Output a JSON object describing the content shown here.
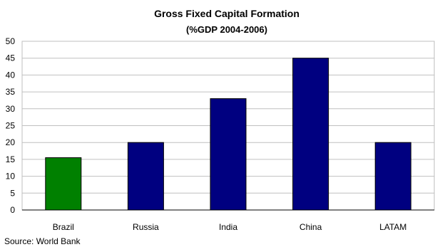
{
  "chart_data": {
    "type": "bar",
    "title": "Gross Fixed Capital Formation",
    "subtitle": "(%GDP 2004-2006)",
    "categories": [
      "Brazil",
      "Russia",
      "India",
      "China",
      "LATAM"
    ],
    "values": [
      15.5,
      20,
      33,
      45,
      20
    ],
    "bar_colors": [
      "#008000",
      "#000080",
      "#000080",
      "#000080",
      "#000080"
    ],
    "ylim": [
      0,
      50
    ],
    "yticks": [
      "0",
      "5",
      "10",
      "15",
      "20",
      "25",
      "30",
      "35",
      "40",
      "45",
      "50"
    ],
    "grid": true,
    "xlabel": "",
    "ylabel": ""
  },
  "source": "Source: World Bank"
}
